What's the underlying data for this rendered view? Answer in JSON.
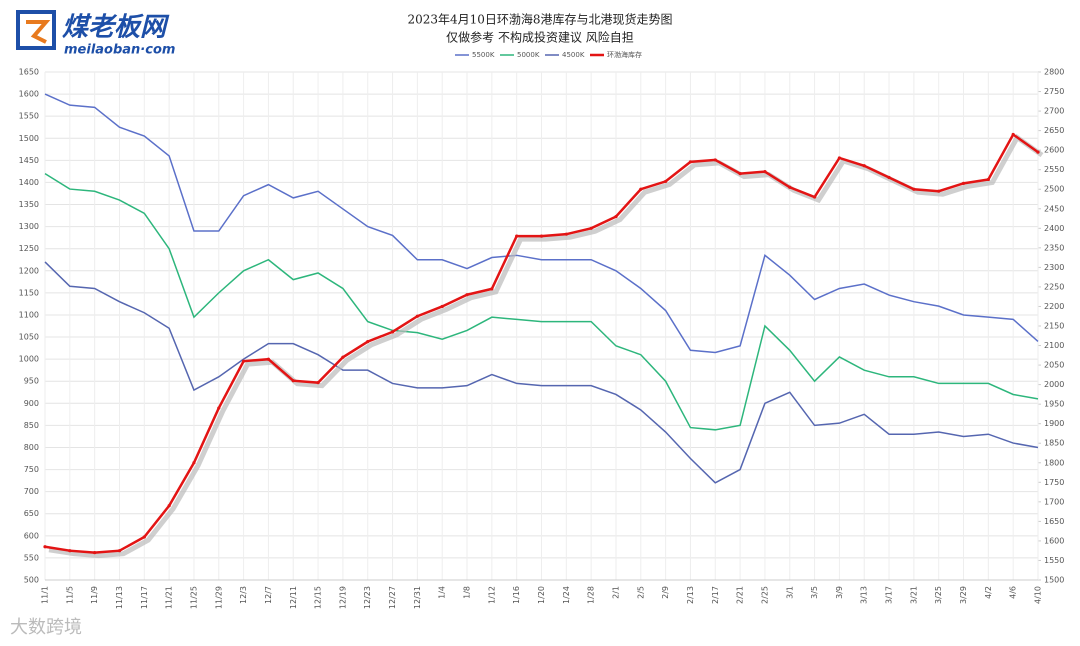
{
  "brand": {
    "name": "煤老板网",
    "url": "meilaoban·com"
  },
  "watermark": "大数跨境",
  "chart_data": {
    "type": "line",
    "title": "2023年4月10日环渤海8港库存与北港现货走势图",
    "subtitle": "仅做参考 不构成投资建议 风险自担",
    "categories": [
      "11/1",
      "11/5",
      "11/9",
      "11/13",
      "11/17",
      "11/21",
      "11/25",
      "11/29",
      "12/3",
      "12/7",
      "12/11",
      "12/15",
      "12/19",
      "12/23",
      "12/27",
      "12/31",
      "1/4",
      "1/8",
      "1/12",
      "1/16",
      "1/20",
      "1/24",
      "1/28",
      "2/1",
      "2/5",
      "2/9",
      "2/13",
      "2/17",
      "2/21",
      "2/25",
      "3/1",
      "3/5",
      "3/9",
      "3/13",
      "3/17",
      "3/21",
      "3/25",
      "3/29",
      "4/2",
      "4/6",
      "4/10"
    ],
    "series": [
      {
        "name": "5500K",
        "color": "#5b70c9",
        "values": [
          1600,
          1575,
          1570,
          1525,
          1505,
          1460,
          1290,
          1290,
          1370,
          1395,
          1365,
          1380,
          1340,
          1300,
          1280,
          1225,
          1225,
          1205,
          1230,
          1235,
          1225,
          1225,
          1225,
          1200,
          1160,
          1110,
          1020,
          1015,
          1030,
          1235,
          1190,
          1135,
          1160,
          1170,
          1145,
          1130,
          1120,
          1100,
          1095,
          1090,
          1040
        ]
      },
      {
        "name": "5000K",
        "color": "#2db67c",
        "values": [
          1420,
          1385,
          1380,
          1360,
          1330,
          1250,
          1095,
          1150,
          1200,
          1225,
          1180,
          1195,
          1160,
          1085,
          1065,
          1060,
          1045,
          1065,
          1095,
          1090,
          1085,
          1085,
          1085,
          1030,
          1010,
          950,
          845,
          840,
          850,
          1075,
          1020,
          950,
          1005,
          975,
          960,
          960,
          945,
          945,
          945,
          920,
          910
        ]
      },
      {
        "name": "4500K",
        "color": "#5566b0",
        "values": [
          1220,
          1165,
          1160,
          1130,
          1105,
          1070,
          930,
          960,
          1000,
          1035,
          1035,
          1010,
          975,
          975,
          945,
          935,
          935,
          940,
          965,
          945,
          940,
          940,
          940,
          920,
          885,
          835,
          775,
          720,
          750,
          900,
          925,
          850,
          855,
          875,
          830,
          830,
          835,
          825,
          830,
          810,
          800
        ]
      },
      {
        "name": "环渤海库存",
        "color": "#e31414",
        "axis": "y2",
        "values": [
          1585,
          1575,
          1570,
          1575,
          1610,
          1690,
          1800,
          1940,
          2060,
          2065,
          2010,
          2005,
          2070,
          2110,
          2135,
          2175,
          2200,
          2230,
          2245,
          2380,
          2380,
          2385,
          2400,
          2430,
          2500,
          2520,
          2570,
          2575,
          2540,
          2545,
          2505,
          2480,
          2580,
          2560,
          2530,
          2500,
          2495,
          2515,
          2525,
          2640,
          2595
        ]
      }
    ],
    "ylim": [
      500,
      1650
    ],
    "yticks": [
      500,
      550,
      600,
      650,
      700,
      750,
      800,
      850,
      900,
      950,
      1000,
      1050,
      1100,
      1150,
      1200,
      1250,
      1300,
      1350,
      1400,
      1450,
      1500,
      1550,
      1600,
      1650
    ],
    "y2lim": [
      1500,
      2800
    ],
    "y2ticks": [
      1500,
      1550,
      1600,
      1650,
      1700,
      1750,
      1800,
      1850,
      1900,
      1950,
      2000,
      2050,
      2100,
      2150,
      2200,
      2250,
      2300,
      2350,
      2400,
      2450,
      2500,
      2550,
      2600,
      2650,
      2700,
      2750,
      2800
    ],
    "grid": true
  }
}
